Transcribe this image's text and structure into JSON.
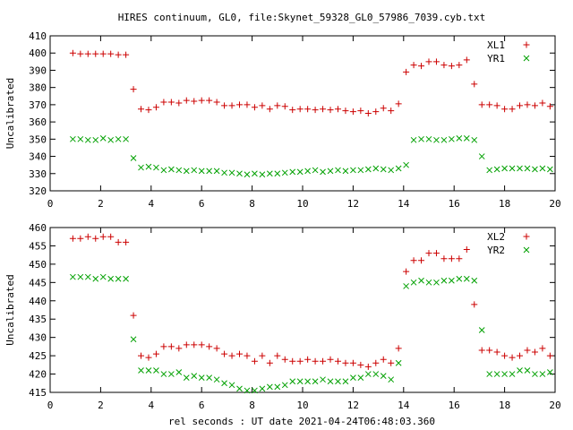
{
  "title": "HIRES continuum, GL0, file:Skynet_59328_GL0_57986_7039.cyb.txt",
  "xlabel": "rel seconds : UT date 2021-04-24T06:48:03.360",
  "colors": {
    "series1": "#cc0000",
    "series2": "#00a000"
  },
  "chart_data": [
    {
      "type": "scatter",
      "ylabel": "Uncalibrated",
      "xlim": [
        0,
        20
      ],
      "ylim": [
        320,
        410
      ],
      "xticks": [
        "0",
        "2",
        "4",
        "6",
        "8",
        "10",
        "12",
        "14",
        "16",
        "18",
        "20"
      ],
      "yticks": [
        "320",
        "330",
        "340",
        "350",
        "360",
        "370",
        "380",
        "390",
        "400",
        "410"
      ],
      "legend_position": "top-right",
      "grid": false,
      "x": [
        0.9,
        1.2,
        1.5,
        1.8,
        2.1,
        2.4,
        2.7,
        3.0,
        3.3,
        3.6,
        3.9,
        4.2,
        4.5,
        4.8,
        5.1,
        5.4,
        5.7,
        6.0,
        6.3,
        6.6,
        6.9,
        7.2,
        7.5,
        7.8,
        8.1,
        8.4,
        8.7,
        9.0,
        9.3,
        9.6,
        9.9,
        10.2,
        10.5,
        10.8,
        11.1,
        11.4,
        11.7,
        12.0,
        12.3,
        12.6,
        12.9,
        13.2,
        13.5,
        13.8,
        14.1,
        14.4,
        14.7,
        15.0,
        15.3,
        15.6,
        15.9,
        16.2,
        16.5,
        16.8,
        17.1,
        17.4,
        17.7,
        18.0,
        18.3,
        18.6,
        18.9,
        19.2,
        19.5,
        19.8
      ],
      "series": [
        {
          "name": "XL1",
          "marker": "+",
          "values": [
            400,
            399.5,
            399.5,
            399.5,
            399.5,
            399.5,
            399,
            399,
            379,
            367.5,
            367,
            368.5,
            371.5,
            371.5,
            371,
            372.5,
            372,
            372.5,
            372.5,
            371.5,
            369.5,
            369.5,
            370,
            370,
            368.5,
            369.5,
            367.5,
            369.5,
            369,
            367,
            367.5,
            367.5,
            367,
            367.5,
            367,
            367.5,
            366.5,
            366,
            366.5,
            365,
            366,
            368,
            366.5,
            370.5,
            389,
            393,
            392.5,
            395,
            395,
            393,
            392.5,
            393,
            396,
            382,
            370,
            370,
            369.5,
            367.5,
            367.5,
            369.5,
            370,
            369.5,
            371,
            369
          ]
        },
        {
          "name": "YR1",
          "marker": "x",
          "values": [
            350,
            350,
            349.5,
            349.5,
            350.5,
            349.5,
            350,
            350,
            339,
            333.5,
            334,
            333.5,
            332,
            332.5,
            332,
            331.5,
            332,
            331.5,
            331.5,
            331.5,
            330.5,
            330.5,
            330,
            329.5,
            330,
            329.5,
            330,
            330,
            330.5,
            331,
            331,
            331.5,
            332,
            331,
            331.5,
            332,
            331.5,
            332,
            332,
            332.5,
            333,
            332.5,
            332,
            333,
            335,
            349.5,
            350,
            350,
            349.5,
            349.5,
            350,
            350.5,
            350.5,
            349.5,
            340,
            332,
            332.5,
            333,
            333,
            333,
            333,
            332.5,
            333,
            332.5
          ]
        }
      ]
    },
    {
      "type": "scatter",
      "ylabel": "Uncalibrated",
      "xlim": [
        0,
        20
      ],
      "ylim": [
        415,
        460
      ],
      "xticks": [
        "0",
        "2",
        "4",
        "6",
        "8",
        "10",
        "12",
        "14",
        "16",
        "18",
        "20"
      ],
      "yticks": [
        "415",
        "420",
        "425",
        "430",
        "435",
        "440",
        "445",
        "450",
        "455",
        "460"
      ],
      "legend_position": "top-right",
      "grid": false,
      "x": [
        0.9,
        1.2,
        1.5,
        1.8,
        2.1,
        2.4,
        2.7,
        3.0,
        3.3,
        3.6,
        3.9,
        4.2,
        4.5,
        4.8,
        5.1,
        5.4,
        5.7,
        6.0,
        6.3,
        6.6,
        6.9,
        7.2,
        7.5,
        7.8,
        8.1,
        8.4,
        8.7,
        9.0,
        9.3,
        9.6,
        9.9,
        10.2,
        10.5,
        10.8,
        11.1,
        11.4,
        11.7,
        12.0,
        12.3,
        12.6,
        12.9,
        13.2,
        13.5,
        13.8,
        14.1,
        14.4,
        14.7,
        15.0,
        15.3,
        15.6,
        15.9,
        16.2,
        16.5,
        16.8,
        17.1,
        17.4,
        17.7,
        18.0,
        18.3,
        18.6,
        18.9,
        19.2,
        19.5,
        19.8
      ],
      "series": [
        {
          "name": "XL2",
          "marker": "+",
          "values": [
            457,
            457,
            457.5,
            457,
            457.5,
            457.5,
            456,
            456,
            436,
            425,
            424.5,
            425.5,
            427.5,
            427.5,
            427,
            428,
            428,
            428,
            427.5,
            427,
            425.5,
            425,
            425.5,
            425,
            423.5,
            425,
            423,
            425,
            424,
            423.5,
            423.5,
            424,
            423.5,
            423.5,
            424,
            423.5,
            423,
            423,
            422.5,
            422,
            423,
            424,
            423,
            427,
            448,
            451,
            451,
            453,
            453,
            451.5,
            451.5,
            451.5,
            454,
            439,
            426.5,
            426.5,
            426,
            425,
            424.5,
            425,
            426.5,
            426,
            427,
            425
          ]
        },
        {
          "name": "YR2",
          "marker": "x",
          "values": [
            446.5,
            446.5,
            446.5,
            446,
            446.5,
            446,
            446,
            446,
            429.5,
            421,
            421,
            421,
            420,
            420,
            420.5,
            419,
            419.5,
            419,
            419,
            418.5,
            417.5,
            417,
            416,
            415.5,
            415.5,
            416,
            416.5,
            416.5,
            417,
            418,
            418,
            418,
            418,
            418.5,
            418,
            418,
            418,
            419,
            419,
            420,
            420,
            419.5,
            418.5,
            423,
            444,
            445,
            445.5,
            445,
            445,
            445.5,
            445.5,
            446,
            446,
            445.5,
            432,
            420,
            420,
            420,
            420,
            421,
            421,
            420,
            420,
            420.5
          ]
        }
      ]
    }
  ]
}
